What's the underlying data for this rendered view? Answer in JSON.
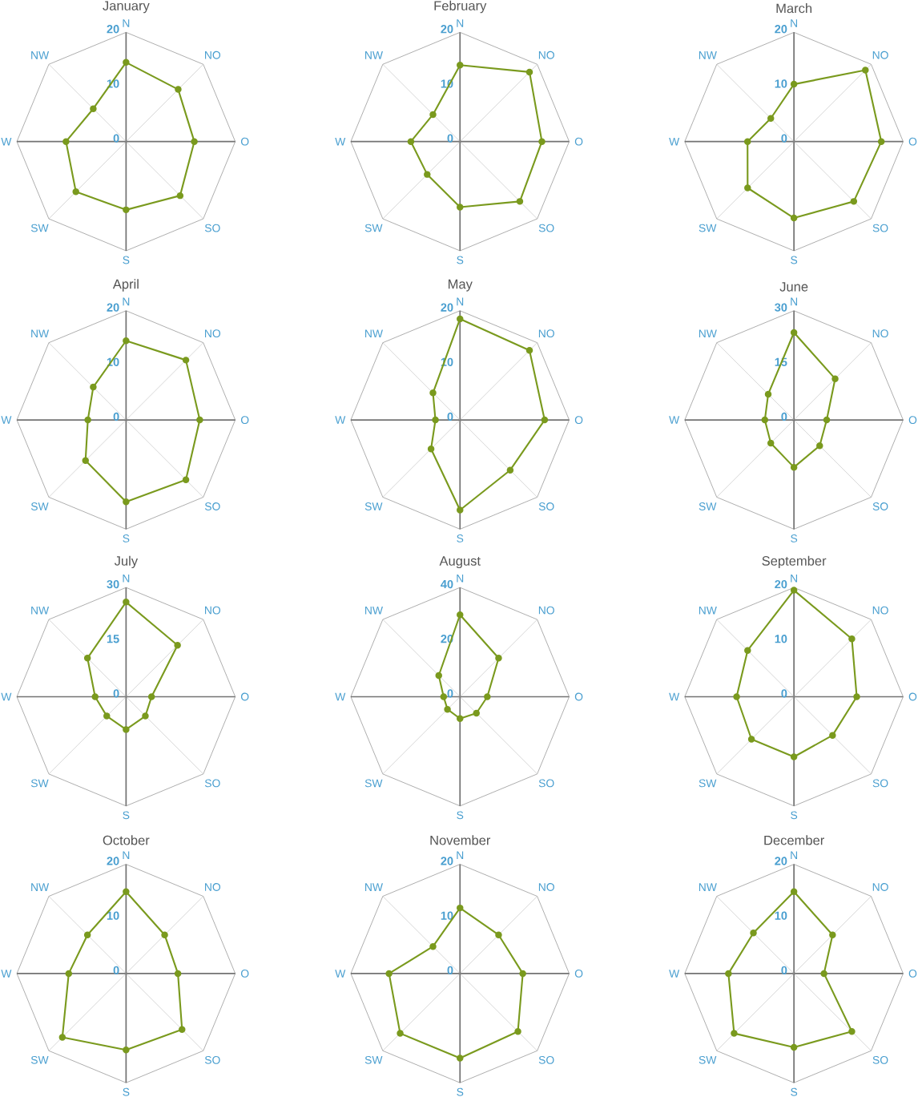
{
  "chart_data": [
    {
      "type": "radar",
      "title": "January",
      "categories": [
        "N",
        "NO",
        "O",
        "SO",
        "S",
        "SW",
        "W",
        "NW"
      ],
      "series": [
        {
          "color": "#7a9a1e",
          "values": [
            14.5,
            13.5,
            12.5,
            14,
            12.5,
            13,
            11,
            8.5
          ]
        }
      ],
      "ylim": [
        0,
        20
      ],
      "yticks": [
        0,
        10,
        20
      ],
      "grid": true,
      "marker": "circle",
      "line_style": "solid"
    },
    {
      "type": "radar",
      "title": "February",
      "categories": [
        "N",
        "NO",
        "O",
        "SO",
        "S",
        "SW",
        "W",
        "NW"
      ],
      "series": [
        {
          "color": "#7a9a1e",
          "values": [
            14,
            18,
            15,
            15.5,
            12,
            8.5,
            9,
            7
          ]
        }
      ],
      "ylim": [
        0,
        20
      ],
      "yticks": [
        0,
        10,
        20
      ],
      "grid": true,
      "marker": "circle",
      "line_style": "solid"
    },
    {
      "type": "radar",
      "title": "March",
      "categories": [
        "N",
        "NO",
        "O",
        "SO",
        "S",
        "SW",
        "W",
        "NW"
      ],
      "series": [
        {
          "color": "#7a9a1e",
          "values": [
            10.5,
            18.5,
            16,
            15.5,
            14,
            12,
            8.5,
            6
          ]
        }
      ],
      "ylim": [
        0,
        20
      ],
      "yticks": [
        0,
        10,
        20
      ],
      "grid": true,
      "marker": "circle",
      "line_style": "solid"
    },
    {
      "type": "radar",
      "title": "April",
      "categories": [
        "N",
        "NO",
        "O",
        "SO",
        "S",
        "SW",
        "W",
        "NW"
      ],
      "series": [
        {
          "color": "#7a9a1e",
          "values": [
            14.5,
            15.5,
            13.5,
            15.5,
            15,
            10.5,
            7,
            8.5
          ]
        }
      ],
      "ylim": [
        0,
        20
      ],
      "yticks": [
        0,
        10,
        20
      ],
      "grid": true,
      "marker": "circle",
      "line_style": "solid"
    },
    {
      "type": "radar",
      "title": "May",
      "categories": [
        "N",
        "NO",
        "O",
        "SO",
        "S",
        "SW",
        "W",
        "NW"
      ],
      "series": [
        {
          "color": "#7a9a1e",
          "values": [
            18.5,
            18,
            15.5,
            13,
            16.5,
            7.5,
            4.5,
            7
          ]
        }
      ],
      "ylim": [
        0,
        20
      ],
      "yticks": [
        0,
        10,
        20
      ],
      "grid": true,
      "marker": "circle",
      "line_style": "solid"
    },
    {
      "type": "radar",
      "title": "June",
      "categories": [
        "N",
        "NO",
        "O",
        "SO",
        "S",
        "SW",
        "W",
        "NW"
      ],
      "series": [
        {
          "color": "#7a9a1e",
          "values": [
            24,
            16,
            9,
            10,
            13,
            9,
            8,
            10
          ]
        }
      ],
      "ylim": [
        0,
        30
      ],
      "yticks": [
        0,
        15,
        30
      ],
      "grid": true,
      "marker": "circle",
      "line_style": "solid"
    },
    {
      "type": "radar",
      "title": "July",
      "categories": [
        "N",
        "NO",
        "O",
        "SO",
        "S",
        "SW",
        "W",
        "NW"
      ],
      "series": [
        {
          "color": "#7a9a1e",
          "values": [
            26,
            20,
            7,
            7.5,
            9,
            7.5,
            8.5,
            15
          ]
        }
      ],
      "ylim": [
        0,
        30
      ],
      "yticks": [
        0,
        15,
        30
      ],
      "grid": true,
      "marker": "circle",
      "line_style": "solid"
    },
    {
      "type": "radar",
      "title": "August",
      "categories": [
        "N",
        "NO",
        "O",
        "SO",
        "S",
        "SW",
        "W",
        "NW"
      ],
      "series": [
        {
          "color": "#7a9a1e",
          "values": [
            30,
            20,
            10,
            8.5,
            8,
            6.5,
            6,
            11
          ]
        }
      ],
      "ylim": [
        0,
        40
      ],
      "yticks": [
        0,
        20,
        40
      ],
      "grid": true,
      "marker": "circle",
      "line_style": "solid"
    },
    {
      "type": "radar",
      "title": "September",
      "categories": [
        "N",
        "NO",
        "O",
        "SO",
        "S",
        "SW",
        "W",
        "NW"
      ],
      "series": [
        {
          "color": "#7a9a1e",
          "values": [
            19.5,
            15,
            11.5,
            10,
            11,
            11,
            10.5,
            12
          ]
        }
      ],
      "ylim": [
        0,
        20
      ],
      "yticks": [
        0,
        10,
        20
      ],
      "grid": true,
      "marker": "circle",
      "line_style": "solid"
    },
    {
      "type": "radar",
      "title": "October",
      "categories": [
        "N",
        "NO",
        "O",
        "SO",
        "S",
        "SW",
        "W",
        "NW"
      ],
      "series": [
        {
          "color": "#7a9a1e",
          "values": [
            15,
            10,
            9.5,
            14.5,
            14,
            16.5,
            10.5,
            10
          ]
        }
      ],
      "ylim": [
        0,
        20
      ],
      "yticks": [
        0,
        10,
        20
      ],
      "grid": true,
      "marker": "circle",
      "line_style": "solid"
    },
    {
      "type": "radar",
      "title": "November",
      "categories": [
        "N",
        "NO",
        "O",
        "SO",
        "S",
        "SW",
        "W",
        "NW"
      ],
      "series": [
        {
          "color": "#7a9a1e",
          "values": [
            12,
            10,
            11.5,
            15,
            15.5,
            15.5,
            13,
            7
          ]
        }
      ],
      "ylim": [
        0,
        20
      ],
      "yticks": [
        0,
        10,
        20
      ],
      "grid": true,
      "marker": "circle",
      "line_style": "solid"
    },
    {
      "type": "radar",
      "title": "December",
      "categories": [
        "N",
        "NO",
        "O",
        "SO",
        "S",
        "SW",
        "W",
        "NW"
      ],
      "series": [
        {
          "color": "#7a9a1e",
          "values": [
            15,
            10,
            5.5,
            15,
            13.5,
            15.5,
            12,
            10.5
          ]
        }
      ],
      "ylim": [
        0,
        20
      ],
      "yticks": [
        0,
        10,
        20
      ],
      "grid": true,
      "marker": "circle",
      "line_style": "solid"
    }
  ]
}
